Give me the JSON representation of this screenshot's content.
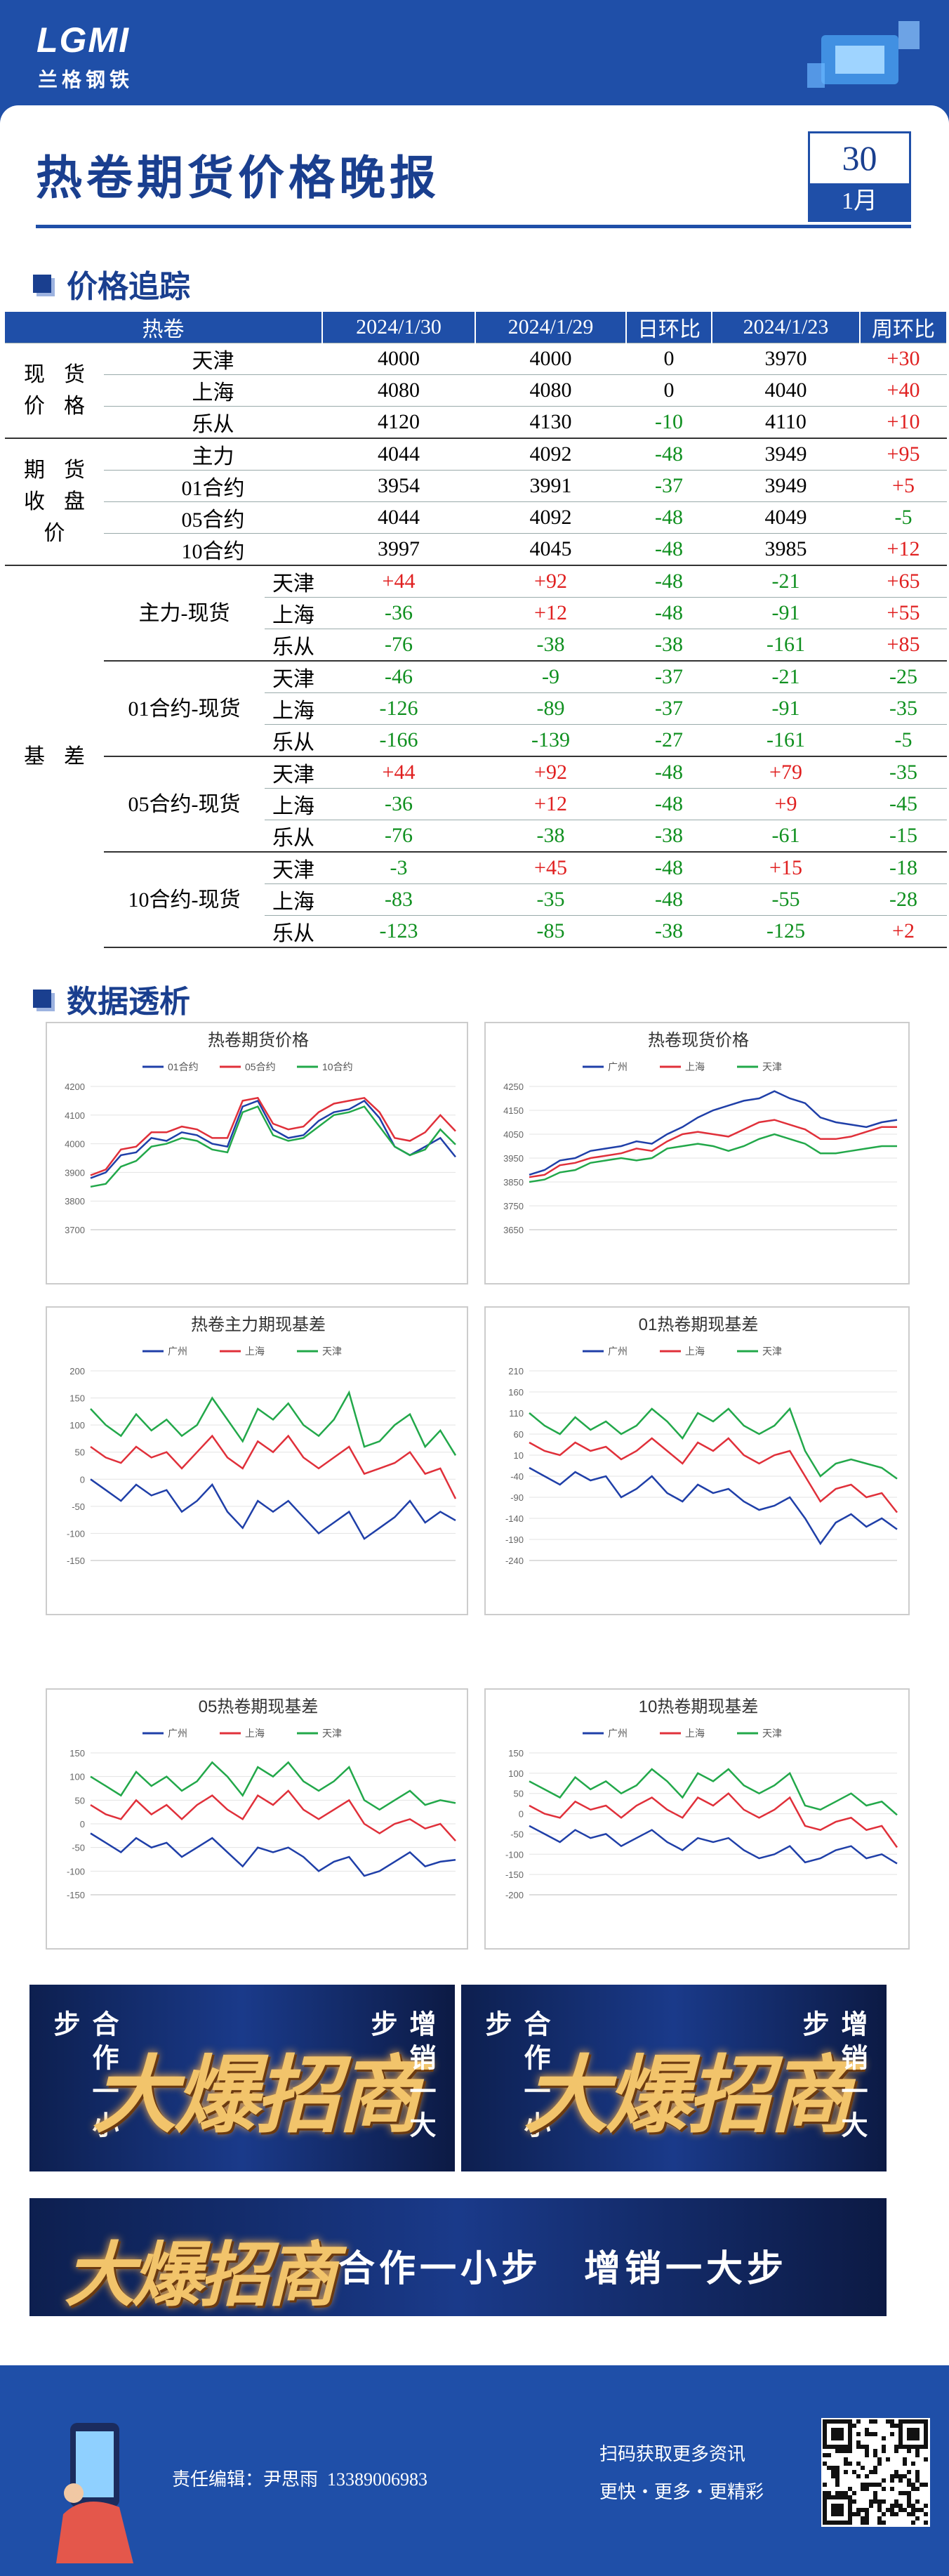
{
  "header": {
    "logo": "LGMI",
    "brand": "兰格钢铁",
    "title": "热卷期货价格晚报",
    "day": "30",
    "month": "1月"
  },
  "sections": [
    "价格追踪",
    "数据透析"
  ],
  "table": {
    "header": [
      "热卷",
      "2024/1/30",
      "2024/1/29",
      "日环比",
      "2024/1/23",
      "周环比"
    ],
    "groups": [
      {
        "label": [
          "现货",
          "价格"
        ],
        "rows": [
          {
            "name": "天津",
            "values": [
              "4000",
              "4000",
              "0",
              "3970",
              "+30"
            ]
          },
          {
            "name": "上海",
            "values": [
              "4080",
              "4080",
              "0",
              "4040",
              "+40"
            ]
          },
          {
            "name": "乐从",
            "values": [
              "4120",
              "4130",
              "-10",
              "4110",
              "+10"
            ]
          }
        ]
      },
      {
        "label": [
          "期货",
          "收盘",
          "价"
        ],
        "rows": [
          {
            "name": "主力",
            "values": [
              "4044",
              "4092",
              "-48",
              "3949",
              "+95"
            ]
          },
          {
            "name": "01合约",
            "values": [
              "3954",
              "3991",
              "-37",
              "3949",
              "+5"
            ]
          },
          {
            "name": "05合约",
            "values": [
              "4044",
              "4092",
              "-48",
              "4049",
              "-5"
            ]
          },
          {
            "name": "10合约",
            "values": [
              "3997",
              "4045",
              "-48",
              "3985",
              "+12"
            ]
          }
        ]
      }
    ],
    "basis": {
      "label": "基差",
      "groups": [
        {
          "label": "主力-现货",
          "rows": [
            {
              "name": "天津",
              "values": [
                "+44",
                "+92",
                "-48",
                "-21",
                "+65"
              ]
            },
            {
              "name": "上海",
              "values": [
                "-36",
                "+12",
                "-48",
                "-91",
                "+55"
              ]
            },
            {
              "name": "乐从",
              "values": [
                "-76",
                "-38",
                "-38",
                "-161",
                "+85"
              ]
            }
          ]
        },
        {
          "label": "01合约-现货",
          "rows": [
            {
              "name": "天津",
              "values": [
                "-46",
                "-9",
                "-37",
                "-21",
                "-25"
              ]
            },
            {
              "name": "上海",
              "values": [
                "-126",
                "-89",
                "-37",
                "-91",
                "-35"
              ]
            },
            {
              "name": "乐从",
              "values": [
                "-166",
                "-139",
                "-27",
                "-161",
                "-5"
              ]
            }
          ]
        },
        {
          "label": "05合约-现货",
          "rows": [
            {
              "name": "天津",
              "values": [
                "+44",
                "+92",
                "-48",
                "+79",
                "-35"
              ]
            },
            {
              "name": "上海",
              "values": [
                "-36",
                "+12",
                "-48",
                "+9",
                "-45"
              ]
            },
            {
              "name": "乐从",
              "values": [
                "-76",
                "-38",
                "-38",
                "-61",
                "-15"
              ]
            }
          ]
        },
        {
          "label": "10合约-现货",
          "rows": [
            {
              "name": "天津",
              "values": [
                "-3",
                "+45",
                "-48",
                "+15",
                "-18"
              ]
            },
            {
              "name": "上海",
              "values": [
                "-83",
                "-35",
                "-48",
                "-55",
                "-28"
              ]
            },
            {
              "name": "乐从",
              "values": [
                "-123",
                "-85",
                "-38",
                "-125",
                "+2"
              ]
            }
          ]
        }
      ]
    }
  },
  "chart_data": [
    {
      "type": "line",
      "title": "热卷期货价格",
      "ylim": [
        3700,
        4200
      ],
      "yticks": [
        3700,
        3800,
        3900,
        4000,
        4100,
        4200
      ],
      "grid": true,
      "series": [
        {
          "name": "01合约",
          "color": "#1f3fa8",
          "values": [
            3880,
            3900,
            3960,
            3970,
            4020,
            4010,
            4040,
            4030,
            4000,
            3990,
            4130,
            4150,
            4050,
            4020,
            4030,
            4080,
            4110,
            4120,
            4150,
            4090,
            3990,
            3960,
            3990,
            4020,
            3954
          ]
        },
        {
          "name": "05合约",
          "color": "#e0303a",
          "values": [
            3890,
            3910,
            3980,
            3990,
            4040,
            4040,
            4060,
            4050,
            4020,
            4020,
            4150,
            4160,
            4070,
            4050,
            4060,
            4110,
            4140,
            4150,
            4160,
            4110,
            4020,
            4010,
            4040,
            4100,
            4044
          ]
        },
        {
          "name": "10合约",
          "color": "#22a84a",
          "values": [
            3850,
            3860,
            3920,
            3940,
            3990,
            4000,
            4020,
            4010,
            3980,
            3970,
            4110,
            4130,
            4030,
            4010,
            4020,
            4060,
            4100,
            4110,
            4130,
            4060,
            3990,
            3960,
            3980,
            4050,
            3997
          ]
        }
      ]
    },
    {
      "type": "line",
      "title": "热卷现货价格",
      "ylim": [
        3650,
        4250
      ],
      "yticks": [
        3650,
        3750,
        3850,
        3950,
        4050,
        4150,
        4250
      ],
      "grid": true,
      "series": [
        {
          "name": "广州",
          "color": "#1f3fa8",
          "values": [
            3880,
            3900,
            3940,
            3950,
            3980,
            3990,
            4000,
            4020,
            4010,
            4050,
            4080,
            4120,
            4150,
            4170,
            4190,
            4200,
            4230,
            4200,
            4180,
            4120,
            4100,
            4090,
            4080,
            4100,
            4110
          ]
        },
        {
          "name": "上海",
          "color": "#e0303a",
          "values": [
            3870,
            3880,
            3920,
            3930,
            3950,
            3960,
            3970,
            3990,
            3980,
            4020,
            4050,
            4060,
            4050,
            4040,
            4070,
            4100,
            4110,
            4090,
            4070,
            4030,
            4030,
            4040,
            4060,
            4080,
            4080
          ]
        },
        {
          "name": "天津",
          "color": "#22a84a",
          "values": [
            3850,
            3860,
            3890,
            3900,
            3930,
            3940,
            3950,
            3940,
            3950,
            3990,
            4000,
            4010,
            4000,
            3980,
            4000,
            4030,
            4050,
            4030,
            4010,
            3970,
            3970,
            3980,
            3990,
            4000,
            4000
          ]
        }
      ]
    },
    {
      "type": "line",
      "title": "热卷主力期现基差",
      "ylim": [
        -150,
        200
      ],
      "yticks": [
        -150,
        -100,
        -50,
        0,
        50,
        100,
        150,
        200
      ],
      "grid": true,
      "series": [
        {
          "name": "广州",
          "color": "#1f3fa8",
          "values": [
            0,
            -20,
            -40,
            -10,
            -30,
            -20,
            -60,
            -40,
            -10,
            -60,
            -90,
            -40,
            -60,
            -40,
            -70,
            -100,
            -80,
            -60,
            -110,
            -90,
            -70,
            -40,
            -80,
            -60,
            -76
          ]
        },
        {
          "name": "上海",
          "color": "#e0303a",
          "values": [
            60,
            40,
            30,
            60,
            40,
            50,
            20,
            50,
            80,
            40,
            20,
            70,
            50,
            80,
            40,
            20,
            40,
            60,
            10,
            20,
            30,
            50,
            10,
            20,
            -36
          ]
        },
        {
          "name": "天津",
          "color": "#22a84a",
          "values": [
            130,
            100,
            80,
            120,
            90,
            110,
            80,
            100,
            150,
            110,
            70,
            130,
            110,
            140,
            100,
            80,
            110,
            160,
            60,
            70,
            100,
            120,
            60,
            90,
            44
          ]
        }
      ]
    },
    {
      "type": "line",
      "title": "01热卷期现基差",
      "ylim": [
        -240,
        210
      ],
      "yticks": [
        -240,
        -190,
        -140,
        -90,
        -40,
        10,
        60,
        110,
        160,
        210
      ],
      "grid": true,
      "series": [
        {
          "name": "广州",
          "color": "#1f3fa8",
          "values": [
            -20,
            -40,
            -60,
            -30,
            -50,
            -40,
            -90,
            -70,
            -40,
            -80,
            -100,
            -60,
            -80,
            -70,
            -100,
            -120,
            -110,
            -90,
            -140,
            -200,
            -150,
            -130,
            -160,
            -140,
            -166
          ]
        },
        {
          "name": "上海",
          "color": "#e0303a",
          "values": [
            40,
            20,
            10,
            40,
            20,
            30,
            0,
            20,
            50,
            20,
            -10,
            40,
            20,
            50,
            10,
            -10,
            10,
            20,
            -40,
            -100,
            -70,
            -60,
            -90,
            -80,
            -126
          ]
        },
        {
          "name": "天津",
          "color": "#22a84a",
          "values": [
            110,
            80,
            60,
            100,
            70,
            90,
            60,
            80,
            120,
            90,
            50,
            110,
            90,
            120,
            80,
            60,
            80,
            120,
            20,
            -40,
            -10,
            0,
            -10,
            -20,
            -46
          ]
        }
      ]
    },
    {
      "type": "line",
      "title": "05热卷期现基差",
      "ylim": [
        -150,
        150
      ],
      "yticks": [
        -150,
        -100,
        -50,
        0,
        50,
        100,
        150
      ],
      "grid": true,
      "series": [
        {
          "name": "广州",
          "color": "#1f3fa8",
          "values": [
            -20,
            -40,
            -60,
            -30,
            -50,
            -40,
            -70,
            -50,
            -30,
            -60,
            -90,
            -50,
            -60,
            -50,
            -70,
            -100,
            -80,
            -70,
            -110,
            -100,
            -80,
            -60,
            -90,
            -80,
            -76
          ]
        },
        {
          "name": "上海",
          "color": "#e0303a",
          "values": [
            40,
            20,
            10,
            50,
            20,
            40,
            10,
            40,
            60,
            30,
            10,
            60,
            40,
            70,
            30,
            10,
            30,
            50,
            0,
            -20,
            0,
            10,
            -10,
            0,
            -36
          ]
        },
        {
          "name": "天津",
          "color": "#22a84a",
          "values": [
            100,
            80,
            60,
            110,
            80,
            100,
            70,
            90,
            130,
            100,
            60,
            120,
            100,
            130,
            90,
            70,
            90,
            120,
            50,
            30,
            50,
            70,
            40,
            50,
            44
          ]
        }
      ]
    },
    {
      "type": "line",
      "title": "10热卷期现基差",
      "ylim": [
        -200,
        150
      ],
      "yticks": [
        -200,
        -150,
        -100,
        -50,
        0,
        50,
        100,
        150
      ],
      "grid": true,
      "series": [
        {
          "name": "广州",
          "color": "#1f3fa8",
          "values": [
            -30,
            -50,
            -70,
            -40,
            -60,
            -50,
            -80,
            -60,
            -40,
            -70,
            -90,
            -60,
            -70,
            -60,
            -90,
            -110,
            -100,
            -80,
            -120,
            -110,
            -90,
            -80,
            -110,
            -100,
            -123
          ]
        },
        {
          "name": "上海",
          "color": "#e0303a",
          "values": [
            20,
            0,
            -10,
            30,
            10,
            20,
            -10,
            20,
            40,
            10,
            -10,
            40,
            20,
            50,
            10,
            -10,
            10,
            40,
            -30,
            -40,
            -20,
            -10,
            -40,
            -30,
            -83
          ]
        },
        {
          "name": "天津",
          "color": "#22a84a",
          "values": [
            80,
            60,
            40,
            90,
            60,
            80,
            50,
            70,
            110,
            80,
            40,
            100,
            80,
            110,
            70,
            50,
            70,
            100,
            20,
            10,
            30,
            50,
            20,
            30,
            -3
          ]
        }
      ]
    }
  ],
  "banners": {
    "left": "合作一小步",
    "center": "大爆招商",
    "right": "增销一大步"
  },
  "footer": {
    "editor": "责任编辑：尹思雨",
    "phone": "13389006983",
    "scan": "扫码获取更多资讯",
    "slogan": "更快・更多・更精彩"
  }
}
